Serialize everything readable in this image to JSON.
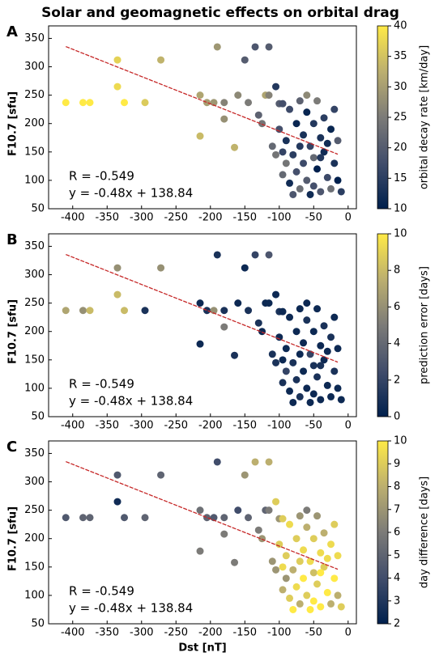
{
  "chart_data": [
    {
      "type": "scatter",
      "title": "Solar and geomagnetic effects on orbital drag",
      "panel": "A",
      "ylabel": "F10.7 [sfu]",
      "annotations": [
        "R = -0.549",
        "y = -0.48x + 138.84"
      ],
      "xlim": [
        -435,
        12
      ],
      "ylim": [
        50,
        372
      ],
      "xticks": [
        -400,
        -350,
        -300,
        -250,
        -200,
        -150,
        -100,
        -50,
        0
      ],
      "yticks": [
        50,
        100,
        150,
        200,
        250,
        300,
        350
      ],
      "x": [
        -410,
        -385,
        -375,
        -335,
        -335,
        -325,
        -295,
        -272,
        -215,
        -215,
        -205,
        -195,
        -190,
        -180,
        -180,
        -165,
        -160,
        -150,
        -145,
        -135,
        -130,
        -125,
        -120,
        -115,
        -115,
        -110,
        -105,
        -100,
        -100,
        -95,
        -95,
        -90,
        -90,
        -85,
        -85,
        -80,
        -80,
        -75,
        -75,
        -70,
        -70,
        -70,
        -65,
        -65,
        -60,
        -60,
        -55,
        -55,
        -50,
        -50,
        -50,
        -45,
        -45,
        -40,
        -40,
        -35,
        -35,
        -30,
        -25,
        -25,
        -20,
        -20,
        -15,
        -15,
        -105,
        -95,
        -60,
        -40,
        -30,
        -10
      ],
      "values": [
        237,
        237,
        237,
        312,
        265,
        237,
        237,
        312,
        250,
        178,
        237,
        237,
        335,
        208,
        237,
        158,
        250,
        312,
        237,
        335,
        215,
        200,
        250,
        335,
        250,
        160,
        265,
        235,
        190,
        150,
        110,
        170,
        130,
        225,
        95,
        145,
        75,
        200,
        115,
        240,
        160,
        85,
        180,
        130,
        220,
        100,
        160,
        75,
        200,
        140,
        90,
        240,
        120,
        175,
        80,
        210,
        150,
        105,
        190,
        85,
        225,
        130,
        170,
        100,
        145,
        235,
        250,
        140,
        165,
        80
      ],
      "color_values": [
        40,
        40,
        40,
        37,
        38,
        40,
        36,
        33,
        31,
        34,
        30,
        29,
        29,
        28,
        26,
        33,
        27,
        20,
        25,
        19,
        21,
        24,
        31,
        20,
        26,
        22,
        14,
        20,
        18,
        16,
        22,
        13,
        24,
        17,
        12,
        15,
        19,
        11,
        18,
        21,
        14,
        23,
        13,
        17,
        11,
        20,
        16,
        12,
        14,
        22,
        18,
        25,
        10,
        13,
        19,
        15,
        12,
        17,
        11,
        23,
        16,
        13,
        20,
        10,
        24,
        18,
        27,
        14,
        12,
        15
      ],
      "trend": {
        "x": [
          -410,
          -15
        ],
        "values": [
          335.6,
          146.0
        ],
        "color": "#c62828"
      },
      "colorbar": {
        "label": "orbital decay rate [km/day]",
        "lim": [
          10,
          40
        ],
        "ticks": [
          10,
          15,
          20,
          25,
          30,
          35,
          40
        ]
      },
      "colormap": [
        "#00204d",
        "#414d6b",
        "#7c7b78",
        "#bcaf6f",
        "#ffea46"
      ]
    },
    {
      "type": "scatter",
      "panel": "B",
      "ylabel": "F10.7 [sfu]",
      "annotations": [
        "R = -0.549",
        "y = -0.48x + 138.84"
      ],
      "xlim": [
        -435,
        12
      ],
      "ylim": [
        50,
        372
      ],
      "xticks": [
        -400,
        -350,
        -300,
        -250,
        -200,
        -150,
        -100,
        -50,
        0
      ],
      "yticks": [
        50,
        100,
        150,
        200,
        250,
        300,
        350
      ],
      "x": [
        -410,
        -385,
        -375,
        -335,
        -335,
        -325,
        -295,
        -272,
        -215,
        -215,
        -205,
        -195,
        -190,
        -180,
        -180,
        -165,
        -160,
        -150,
        -145,
        -135,
        -130,
        -125,
        -120,
        -115,
        -115,
        -110,
        -105,
        -100,
        -100,
        -95,
        -95,
        -90,
        -90,
        -85,
        -85,
        -80,
        -80,
        -75,
        -75,
        -70,
        -70,
        -70,
        -65,
        -65,
        -60,
        -60,
        -55,
        -55,
        -50,
        -50,
        -50,
        -45,
        -45,
        -40,
        -40,
        -35,
        -35,
        -30,
        -25,
        -25,
        -20,
        -20,
        -15,
        -15,
        -105,
        -95,
        -60,
        -40,
        -30,
        -10
      ],
      "values": [
        237,
        237,
        237,
        312,
        265,
        237,
        237,
        312,
        250,
        178,
        237,
        237,
        335,
        208,
        237,
        158,
        250,
        312,
        237,
        335,
        215,
        200,
        250,
        335,
        250,
        160,
        265,
        235,
        190,
        150,
        110,
        170,
        130,
        225,
        95,
        145,
        75,
        200,
        115,
        240,
        160,
        85,
        180,
        130,
        220,
        100,
        160,
        75,
        200,
        140,
        90,
        240,
        120,
        175,
        80,
        210,
        150,
        105,
        190,
        85,
        225,
        130,
        170,
        100,
        145,
        235,
        250,
        140,
        165,
        80
      ],
      "color_values": [
        7,
        6,
        8,
        6,
        8,
        8,
        1,
        6,
        0.5,
        0.5,
        1,
        6,
        1,
        5,
        1,
        1,
        0.5,
        0.5,
        1,
        2,
        1,
        0.5,
        0.5,
        3,
        0.5,
        1,
        0.5,
        1,
        0.5,
        0.5,
        1,
        0.5,
        2,
        0.5,
        0.5,
        1,
        0.5,
        0.5,
        1,
        0.5,
        0.5,
        1,
        0.5,
        0.5,
        1,
        0.5,
        2,
        0.5,
        0.5,
        1,
        0.5,
        0.5,
        1,
        0.5,
        0.5,
        1,
        0.5,
        0.5,
        1,
        0.5,
        0.5,
        1,
        0.5,
        0.5,
        1,
        0.5,
        0.5,
        1,
        0.5,
        0.5
      ],
      "trend": {
        "x": [
          -410,
          -15
        ],
        "values": [
          335.6,
          146.0
        ],
        "color": "#c62828"
      },
      "colorbar": {
        "label": "prediction error [days]",
        "lim": [
          0,
          10
        ],
        "ticks": [
          0,
          2,
          4,
          6,
          8,
          10
        ]
      },
      "colormap": [
        "#00204d",
        "#414d6b",
        "#7c7b78",
        "#bcaf6f",
        "#ffea46"
      ]
    },
    {
      "type": "scatter",
      "panel": "C",
      "ylabel": "F10.7 [sfu]",
      "xlabel": "Dst [nT]",
      "annotations": [
        "R = -0.549",
        "y = -0.48x + 138.84"
      ],
      "xlim": [
        -435,
        12
      ],
      "ylim": [
        50,
        372
      ],
      "xticks": [
        -400,
        -350,
        -300,
        -250,
        -200,
        -150,
        -100,
        -50,
        0
      ],
      "yticks": [
        50,
        100,
        150,
        200,
        250,
        300,
        350
      ],
      "x": [
        -410,
        -385,
        -375,
        -335,
        -335,
        -325,
        -295,
        -272,
        -215,
        -215,
        -205,
        -195,
        -190,
        -180,
        -180,
        -165,
        -160,
        -150,
        -145,
        -135,
        -130,
        -125,
        -120,
        -115,
        -115,
        -110,
        -105,
        -100,
        -100,
        -95,
        -95,
        -90,
        -90,
        -85,
        -85,
        -80,
        -80,
        -75,
        -75,
        -70,
        -70,
        -70,
        -65,
        -65,
        -60,
        -60,
        -55,
        -55,
        -50,
        -50,
        -50,
        -45,
        -45,
        -40,
        -40,
        -35,
        -35,
        -30,
        -25,
        -25,
        -20,
        -20,
        -15,
        -15,
        -105,
        -95,
        -60,
        -40,
        -30,
        -10
      ],
      "values": [
        237,
        237,
        237,
        312,
        265,
        237,
        237,
        312,
        250,
        178,
        237,
        237,
        335,
        208,
        237,
        158,
        250,
        312,
        237,
        335,
        215,
        200,
        250,
        335,
        250,
        160,
        265,
        235,
        190,
        150,
        110,
        170,
        130,
        225,
        95,
        145,
        75,
        200,
        115,
        240,
        160,
        85,
        180,
        130,
        220,
        100,
        160,
        75,
        200,
        140,
        90,
        240,
        120,
        175,
        80,
        210,
        150,
        105,
        190,
        85,
        225,
        130,
        170,
        100,
        145,
        235,
        250,
        140,
        165,
        80
      ],
      "color_values": [
        4.5,
        5,
        5,
        4.5,
        2.5,
        4.5,
        5,
        5,
        5.5,
        6,
        5,
        4.5,
        4,
        6,
        5,
        6,
        4,
        7,
        5,
        8,
        6,
        7,
        5,
        8,
        6,
        7,
        9,
        7,
        9,
        9.5,
        8,
        9,
        7,
        9.5,
        9,
        8,
        10,
        9,
        9.5,
        7,
        9,
        8,
        9.5,
        10,
        8,
        9,
        9.5,
        10,
        9,
        8.5,
        10,
        7,
        9,
        9.5,
        10,
        8,
        9,
        10,
        9.5,
        8,
        9,
        10,
        9.5,
        8,
        7,
        9,
        6,
        10,
        9.5,
        9
      ],
      "trend": {
        "x": [
          -410,
          -15
        ],
        "values": [
          335.6,
          146.0
        ],
        "color": "#c62828"
      },
      "colorbar": {
        "label": "day difference [days]",
        "lim": [
          2,
          10
        ],
        "ticks": [
          2,
          3,
          4,
          5,
          6,
          7,
          8,
          9,
          10
        ]
      },
      "colormap": [
        "#00204d",
        "#414d6b",
        "#7c7b78",
        "#bcaf6f",
        "#ffea46"
      ]
    }
  ]
}
